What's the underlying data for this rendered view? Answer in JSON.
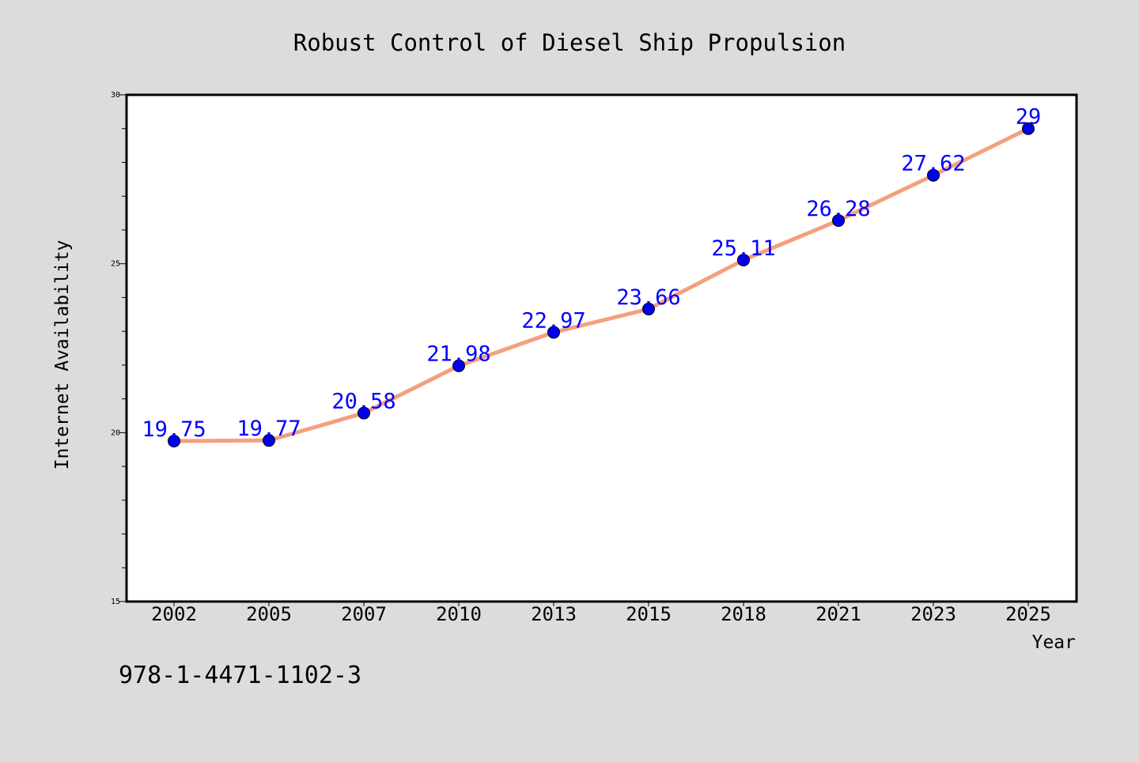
{
  "chart_data": {
    "type": "line",
    "title": "Robust Control of Diesel Ship Propulsion",
    "xlabel": "Year",
    "ylabel": "Internet Availability",
    "categories": [
      "2002",
      "2005",
      "2007",
      "2010",
      "2013",
      "2015",
      "2018",
      "2021",
      "2023",
      "2025"
    ],
    "series": [
      {
        "values": [
          19.75,
          19.77,
          20.58,
          21.98,
          22.97,
          23.66,
          25.11,
          26.28,
          27.62,
          29
        ],
        "line_color": "#f4a07c",
        "marker_color": "#0000ee",
        "label_color": "#0000ff"
      }
    ],
    "data_labels": [
      "19.75",
      "19.77",
      "20.58",
      "21.98",
      "22.97",
      "23.66",
      "25.11",
      "26.28",
      "27.62",
      "29"
    ],
    "ylim": [
      15,
      30
    ],
    "yticks": [
      15,
      20,
      25,
      30
    ],
    "grid": false,
    "legend": "none"
  },
  "footer_text": "978-1-4471-1102-3",
  "colors": {
    "background": "#dcdcdc",
    "plot_background": "#ffffff",
    "axes": "#000000"
  }
}
